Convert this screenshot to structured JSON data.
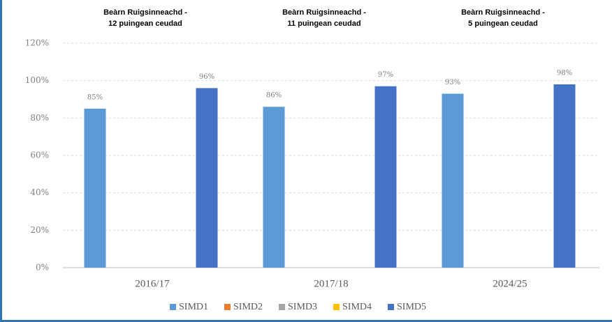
{
  "chart_data": {
    "type": "bar",
    "categories": [
      "2016/17",
      "2017/18",
      "2024/25"
    ],
    "annotations": [
      [
        "Beàrn Ruigsinneachd -",
        "12 puingean ceudad"
      ],
      [
        "Beàrn Ruigsinneachd -",
        "11 puingean ceudad"
      ],
      [
        "Beàrn Ruigsinneachd -",
        "5 puingean ceudad"
      ]
    ],
    "series": [
      {
        "name": "SIMD1",
        "color": "#5b9bd5",
        "values": [
          85,
          86,
          93
        ],
        "value_labels": [
          "85%",
          "86%",
          "93%"
        ]
      },
      {
        "name": "SIMD2",
        "color": "#ed7d31",
        "values": [
          null,
          null,
          null
        ]
      },
      {
        "name": "SIMD3",
        "color": "#a5a5a5",
        "values": [
          null,
          null,
          null
        ]
      },
      {
        "name": "SIMD4",
        "color": "#ffc000",
        "values": [
          null,
          null,
          null
        ]
      },
      {
        "name": "SIMD5",
        "color": "#4472c4",
        "values": [
          96,
          97,
          98
        ],
        "value_labels": [
          "96%",
          "97%",
          "98%"
        ]
      }
    ],
    "ylim": [
      0,
      120
    ],
    "yticks": [
      {
        "value": 0,
        "label": "0%"
      },
      {
        "value": 20,
        "label": "20%"
      },
      {
        "value": 40,
        "label": "40%"
      },
      {
        "value": 60,
        "label": "60%"
      },
      {
        "value": 80,
        "label": "80%"
      },
      {
        "value": 100,
        "label": "100%"
      },
      {
        "value": 120,
        "label": "120%"
      }
    ],
    "grid": true,
    "legend": "bottom"
  }
}
